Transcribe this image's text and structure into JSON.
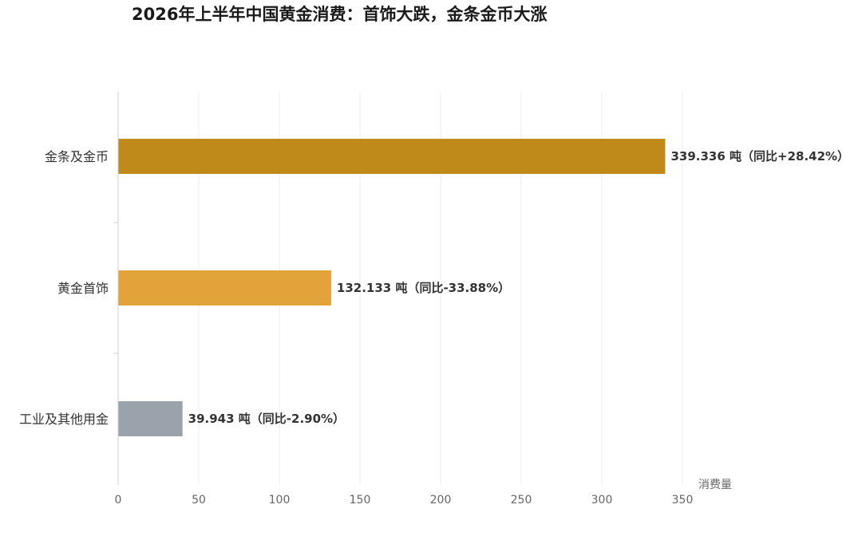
{
  "chart_data": {
    "type": "bar",
    "orientation": "horizontal",
    "title": "2026年上半年中国黄金消费：首饰大跌，金条金币大涨",
    "xlabel": "消费量",
    "ylabel": "",
    "xlim": [
      0,
      350
    ],
    "x_ticks": [
      0,
      50,
      100,
      150,
      200,
      250,
      300,
      350
    ],
    "x_tick_labels": [
      "0",
      "50",
      "100",
      "150",
      "200",
      "250",
      "300",
      "350"
    ],
    "grid": true,
    "categories": [
      "金条及金币",
      "黄金首饰",
      "工业及其他用金"
    ],
    "values": [
      339.336,
      132.133,
      39.943
    ],
    "data_labels": [
      "339.336 吨（同比+28.42%）",
      "132.133 吨（同比-33.88%）",
      "39.943 吨（同比-2.90%）"
    ],
    "colors": [
      "#C08A1A",
      "#E2A43A",
      "#9AA3AC"
    ]
  }
}
